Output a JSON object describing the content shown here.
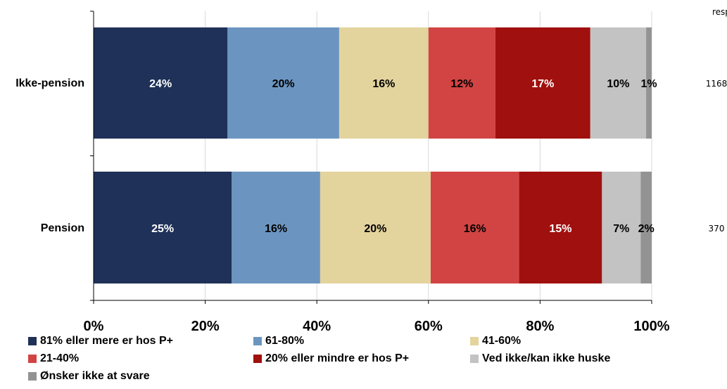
{
  "resp_header": "resp.",
  "chart_data": {
    "type": "bar",
    "orientation": "horizontal",
    "stacked": "percent",
    "categories": [
      "Ikke-pension",
      "Pension"
    ],
    "respondents": [
      "1168",
      "370"
    ],
    "series": [
      {
        "name": "81% eller mere er hos P+",
        "color": "#1F3158",
        "label_color": "#FFFFFF",
        "values": [
          24,
          25
        ]
      },
      {
        "name": "61-80%",
        "color": "#6B95C0",
        "label_color": "#000000",
        "values": [
          20,
          16
        ]
      },
      {
        "name": "41-60%",
        "color": "#E3D39D",
        "label_color": "#000000",
        "values": [
          16,
          20
        ]
      },
      {
        "name": "21-40%",
        "color": "#D24443",
        "label_color": "#000000",
        "values": [
          12,
          16
        ]
      },
      {
        "name": "20% eller mindre er hos P+",
        "color": "#A0100E",
        "label_color": "#FFFFFF",
        "values": [
          17,
          15
        ]
      },
      {
        "name": "Ved ikke/kan ikke huske",
        "color": "#C3C3C3",
        "label_color": "#000000",
        "values": [
          10,
          7
        ]
      },
      {
        "name": "Ønsker ikke at svare",
        "color": "#939393",
        "label_color": "#000000",
        "values": [
          1,
          2
        ]
      }
    ],
    "xlim": [
      0,
      100
    ],
    "xticks": [
      "0%",
      "20%",
      "40%",
      "60%",
      "80%",
      "100%"
    ],
    "grid": true,
    "legend_position": "bottom"
  }
}
